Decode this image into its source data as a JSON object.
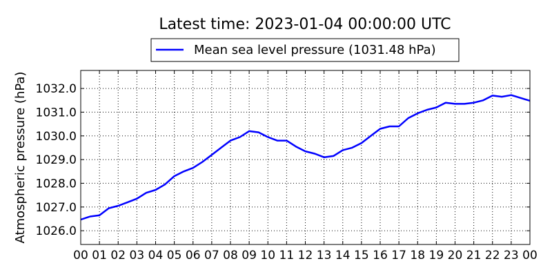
{
  "chart_data": {
    "type": "line",
    "title": "Latest time: 2023-01-04 00:00:00 UTC",
    "xlabel": "",
    "ylabel": "Atmospheric pressure (hPa)",
    "xlim": [
      0,
      24
    ],
    "ylim": [
      1025.42,
      1032.76
    ],
    "grid": true,
    "legend_position": "top-center-outside",
    "x_ticks": [
      0,
      1,
      2,
      3,
      4,
      5,
      6,
      7,
      8,
      9,
      10,
      11,
      12,
      13,
      14,
      15,
      16,
      17,
      18,
      19,
      20,
      21,
      22,
      23,
      24
    ],
    "x_tick_labels": [
      "00",
      "01",
      "02",
      "03",
      "04",
      "05",
      "06",
      "07",
      "08",
      "09",
      "10",
      "11",
      "12",
      "13",
      "14",
      "15",
      "16",
      "17",
      "18",
      "19",
      "20",
      "21",
      "22",
      "23",
      "00"
    ],
    "y_ticks": [
      1026.0,
      1027.0,
      1028.0,
      1029.0,
      1030.0,
      1031.0,
      1032.0
    ],
    "y_tick_labels": [
      "1026.0",
      "1027.0",
      "1028.0",
      "1029.0",
      "1030.0",
      "1031.0",
      "1032.0"
    ],
    "series": [
      {
        "name": "Mean sea level pressure (1031.48 hPa)",
        "color": "#0000ff",
        "x": [
          0,
          0.5,
          1,
          1.5,
          2,
          2.5,
          3,
          3.5,
          4,
          4.5,
          5,
          5.5,
          6,
          6.5,
          7,
          7.5,
          8,
          8.5,
          9,
          9.5,
          10,
          10.5,
          11,
          11.5,
          12,
          12.5,
          13,
          13.5,
          14,
          14.5,
          15,
          15.5,
          16,
          16.5,
          17,
          17.5,
          18,
          18.5,
          19,
          19.5,
          20,
          20.5,
          21,
          21.5,
          22,
          22.5,
          23,
          23.5,
          24
        ],
        "values": [
          1026.47,
          1026.6,
          1026.65,
          1026.95,
          1027.05,
          1027.2,
          1027.35,
          1027.6,
          1027.72,
          1027.95,
          1028.3,
          1028.5,
          1028.65,
          1028.9,
          1029.2,
          1029.5,
          1029.8,
          1029.95,
          1030.2,
          1030.15,
          1029.95,
          1029.8,
          1029.8,
          1029.55,
          1029.35,
          1029.25,
          1029.1,
          1029.15,
          1029.4,
          1029.5,
          1029.7,
          1030.0,
          1030.3,
          1030.4,
          1030.4,
          1030.75,
          1030.95,
          1031.1,
          1031.2,
          1031.4,
          1031.35,
          1031.35,
          1031.4,
          1031.5,
          1031.7,
          1031.65,
          1031.72,
          1031.6,
          1031.48
        ]
      }
    ]
  }
}
